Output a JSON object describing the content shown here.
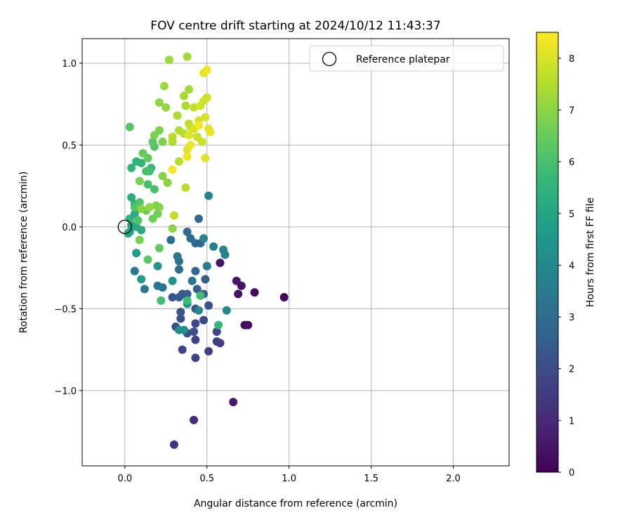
{
  "chart_data": {
    "type": "scatter",
    "title": "FOV centre drift starting at 2024/10/12 11:43:37",
    "xlabel": "Angular distance from reference (arcmin)",
    "ylabel": "Rotation from reference (arcmin)",
    "xlim": [
      -0.26,
      2.34
    ],
    "ylim": [
      -1.46,
      1.15
    ],
    "xticks": [
      0.0,
      0.5,
      1.0,
      1.5,
      2.0
    ],
    "xtick_labels": [
      "0.0",
      "0.5",
      "1.0",
      "1.5",
      "2.0"
    ],
    "yticks": [
      -1.0,
      -0.5,
      0.0,
      0.5,
      1.0
    ],
    "ytick_labels": [
      "−1.0",
      "−0.5",
      "0.0",
      "0.5",
      "1.0"
    ],
    "grid": true,
    "legend": {
      "placement": "top-right",
      "entries": [
        "Reference platepar"
      ]
    },
    "reference_point": {
      "x": 0.0,
      "y": 0.0
    },
    "colorbar": {
      "label": "Hours from first FF file",
      "colormap": "viridis",
      "range": [
        0,
        8.5
      ],
      "ticks": [
        0,
        1,
        2,
        3,
        4,
        5,
        6,
        7,
        8
      ],
      "tick_labels": [
        "0",
        "1",
        "2",
        "3",
        "4",
        "5",
        "6",
        "7",
        "8"
      ]
    },
    "points": [
      {
        "x": 0.97,
        "y": -0.43,
        "c": 0.1
      },
      {
        "x": 0.79,
        "y": -0.4,
        "c": 0.2
      },
      {
        "x": 0.73,
        "y": -0.6,
        "c": 0.3
      },
      {
        "x": 0.75,
        "y": -0.6,
        "c": 0.35
      },
      {
        "x": 0.71,
        "y": -0.36,
        "c": 0.4
      },
      {
        "x": 0.69,
        "y": -0.41,
        "c": 0.4
      },
      {
        "x": 0.68,
        "y": -0.33,
        "c": 0.5
      },
      {
        "x": 0.58,
        "y": -0.22,
        "c": 0.5
      },
      {
        "x": 0.66,
        "y": -1.07,
        "c": 0.6
      },
      {
        "x": 0.42,
        "y": -1.18,
        "c": 1.0
      },
      {
        "x": 0.3,
        "y": -1.33,
        "c": 1.2
      },
      {
        "x": 0.58,
        "y": -0.71,
        "c": 1.5
      },
      {
        "x": 0.51,
        "y": -0.76,
        "c": 1.6
      },
      {
        "x": 0.56,
        "y": -0.7,
        "c": 1.6
      },
      {
        "x": 0.43,
        "y": -0.8,
        "c": 1.7
      },
      {
        "x": 0.43,
        "y": -0.69,
        "c": 1.7
      },
      {
        "x": 0.35,
        "y": -0.75,
        "c": 1.8
      },
      {
        "x": 0.56,
        "y": -0.64,
        "c": 1.8
      },
      {
        "x": 0.48,
        "y": -0.57,
        "c": 1.9
      },
      {
        "x": 0.43,
        "y": -0.59,
        "c": 1.9
      },
      {
        "x": 0.34,
        "y": -0.56,
        "c": 2.0
      },
      {
        "x": 0.31,
        "y": -0.61,
        "c": 2.0
      },
      {
        "x": 0.42,
        "y": -0.64,
        "c": 2.1
      },
      {
        "x": 0.38,
        "y": -0.65,
        "c": 2.1
      },
      {
        "x": 0.51,
        "y": -0.48,
        "c": 2.2
      },
      {
        "x": 0.43,
        "y": -0.5,
        "c": 2.2
      },
      {
        "x": 0.34,
        "y": -0.52,
        "c": 2.3
      },
      {
        "x": 0.29,
        "y": -0.43,
        "c": 2.3
      },
      {
        "x": 0.33,
        "y": -0.43,
        "c": 2.4
      },
      {
        "x": 0.35,
        "y": -0.41,
        "c": 2.4
      },
      {
        "x": 0.38,
        "y": -0.41,
        "c": 2.5
      },
      {
        "x": 0.44,
        "y": -0.38,
        "c": 2.5
      },
      {
        "x": 0.48,
        "y": -0.41,
        "c": 2.6
      },
      {
        "x": 0.49,
        "y": -0.32,
        "c": 2.6
      },
      {
        "x": 0.43,
        "y": -0.27,
        "c": 2.7
      },
      {
        "x": 0.5,
        "y": -0.24,
        "c": 2.7
      },
      {
        "x": 0.46,
        "y": -0.1,
        "c": 2.8
      },
      {
        "x": 0.43,
        "y": -0.1,
        "c": 2.8
      },
      {
        "x": 0.45,
        "y": 0.05,
        "c": 2.9
      },
      {
        "x": 0.38,
        "y": -0.03,
        "c": 2.9
      },
      {
        "x": 0.4,
        "y": -0.07,
        "c": 3.0
      },
      {
        "x": 0.28,
        "y": -0.08,
        "c": 3.0
      },
      {
        "x": 0.33,
        "y": -0.26,
        "c": 3.1
      },
      {
        "x": 0.33,
        "y": -0.21,
        "c": 3.2
      },
      {
        "x": 0.32,
        "y": -0.18,
        "c": 3.3
      },
      {
        "x": 0.41,
        "y": -0.33,
        "c": 3.3
      },
      {
        "x": 0.23,
        "y": -0.37,
        "c": 3.4
      },
      {
        "x": 0.2,
        "y": -0.36,
        "c": 3.4
      },
      {
        "x": 0.12,
        "y": -0.38,
        "c": 3.5
      },
      {
        "x": 0.06,
        "y": -0.27,
        "c": 3.5
      },
      {
        "x": 0.5,
        "y": -0.24,
        "c": 3.6
      },
      {
        "x": 0.48,
        "y": -0.07,
        "c": 3.7
      },
      {
        "x": 0.54,
        "y": -0.12,
        "c": 3.8
      },
      {
        "x": 0.6,
        "y": -0.14,
        "c": 3.8
      },
      {
        "x": 0.61,
        "y": -0.17,
        "c": 3.9
      },
      {
        "x": 0.51,
        "y": 0.19,
        "c": 3.9
      },
      {
        "x": 0.62,
        "y": -0.51,
        "c": 4.0
      },
      {
        "x": 0.45,
        "y": -0.51,
        "c": 4.0
      },
      {
        "x": 0.33,
        "y": -0.63,
        "c": 4.1
      },
      {
        "x": 0.36,
        "y": -0.63,
        "c": 4.2
      },
      {
        "x": 0.38,
        "y": -0.47,
        "c": 4.3
      },
      {
        "x": 0.29,
        "y": -0.33,
        "c": 4.4
      },
      {
        "x": 0.2,
        "y": -0.24,
        "c": 4.5
      },
      {
        "x": 0.1,
        "y": -0.32,
        "c": 4.6
      },
      {
        "x": 0.07,
        "y": -0.16,
        "c": 4.7
      },
      {
        "x": 0.03,
        "y": -0.03,
        "c": 4.8
      },
      {
        "x": 0.04,
        "y": 0.01,
        "c": 4.9
      },
      {
        "x": 0.02,
        "y": -0.04,
        "c": 5.0
      },
      {
        "x": 0.07,
        "y": 0.0,
        "c": 5.1
      },
      {
        "x": 0.1,
        "y": -0.02,
        "c": 5.2
      },
      {
        "x": 0.06,
        "y": 0.08,
        "c": 5.2
      },
      {
        "x": 0.04,
        "y": 0.18,
        "c": 5.3
      },
      {
        "x": 0.06,
        "y": 0.14,
        "c": 5.4
      },
      {
        "x": 0.03,
        "y": 0.05,
        "c": 5.5
      },
      {
        "x": 0.07,
        "y": 0.4,
        "c": 5.5
      },
      {
        "x": 0.04,
        "y": 0.36,
        "c": 5.6
      },
      {
        "x": 0.1,
        "y": 0.39,
        "c": 5.6
      },
      {
        "x": 0.16,
        "y": 0.36,
        "c": 5.7
      },
      {
        "x": 0.57,
        "y": -0.6,
        "c": 5.7
      },
      {
        "x": 0.46,
        "y": -0.42,
        "c": 5.8
      },
      {
        "x": 0.38,
        "y": -0.45,
        "c": 5.8
      },
      {
        "x": 0.22,
        "y": -0.45,
        "c": 5.9
      },
      {
        "x": 0.15,
        "y": 0.34,
        "c": 5.9
      },
      {
        "x": 0.13,
        "y": 0.34,
        "c": 6.0
      },
      {
        "x": 0.18,
        "y": 0.23,
        "c": 6.0
      },
      {
        "x": 0.14,
        "y": 0.26,
        "c": 6.0
      },
      {
        "x": 0.09,
        "y": 0.15,
        "c": 6.1
      },
      {
        "x": 0.06,
        "y": 0.12,
        "c": 6.1
      },
      {
        "x": 0.08,
        "y": 0.04,
        "c": 6.1
      },
      {
        "x": 0.03,
        "y": 0.61,
        "c": 6.2
      },
      {
        "x": 0.18,
        "y": 0.49,
        "c": 6.2
      },
      {
        "x": 0.17,
        "y": 0.52,
        "c": 6.3
      },
      {
        "x": 0.14,
        "y": -0.2,
        "c": 6.3
      },
      {
        "x": 0.21,
        "y": -0.13,
        "c": 6.4
      },
      {
        "x": 0.14,
        "y": 0.42,
        "c": 6.4
      },
      {
        "x": 0.11,
        "y": 0.45,
        "c": 6.5
      },
      {
        "x": 0.13,
        "y": 0.1,
        "c": 6.5
      },
      {
        "x": 0.2,
        "y": 0.08,
        "c": 6.6
      },
      {
        "x": 0.17,
        "y": 0.05,
        "c": 6.6
      },
      {
        "x": 0.09,
        "y": -0.08,
        "c": 6.7
      },
      {
        "x": 0.09,
        "y": 0.28,
        "c": 6.7
      },
      {
        "x": 0.18,
        "y": 0.56,
        "c": 6.8
      },
      {
        "x": 0.21,
        "y": 0.59,
        "c": 6.8
      },
      {
        "x": 0.23,
        "y": 0.52,
        "c": 6.8
      },
      {
        "x": 0.23,
        "y": 0.31,
        "c": 6.9
      },
      {
        "x": 0.19,
        "y": 0.13,
        "c": 6.9
      },
      {
        "x": 0.21,
        "y": 0.12,
        "c": 6.9
      },
      {
        "x": 0.26,
        "y": 0.27,
        "c": 7.0
      },
      {
        "x": 0.29,
        "y": -0.01,
        "c": 7.0
      },
      {
        "x": 0.1,
        "y": 0.11,
        "c": 7.0
      },
      {
        "x": 0.15,
        "y": 0.12,
        "c": 7.1
      },
      {
        "x": 0.21,
        "y": 0.76,
        "c": 7.1
      },
      {
        "x": 0.25,
        "y": 0.73,
        "c": 7.1
      },
      {
        "x": 0.24,
        "y": 0.86,
        "c": 7.2
      },
      {
        "x": 0.27,
        "y": 1.02,
        "c": 7.2
      },
      {
        "x": 0.38,
        "y": 1.04,
        "c": 7.3
      },
      {
        "x": 0.39,
        "y": 0.84,
        "c": 7.3
      },
      {
        "x": 0.36,
        "y": 0.8,
        "c": 7.4
      },
      {
        "x": 0.37,
        "y": 0.74,
        "c": 7.4
      },
      {
        "x": 0.32,
        "y": 0.68,
        "c": 7.4
      },
      {
        "x": 0.36,
        "y": 0.57,
        "c": 7.5
      },
      {
        "x": 0.33,
        "y": 0.59,
        "c": 7.5
      },
      {
        "x": 0.29,
        "y": 0.52,
        "c": 7.5
      },
      {
        "x": 0.29,
        "y": 0.55,
        "c": 7.6
      },
      {
        "x": 0.33,
        "y": 0.4,
        "c": 7.6
      },
      {
        "x": 0.37,
        "y": 0.24,
        "c": 7.6
      },
      {
        "x": 0.3,
        "y": 0.07,
        "c": 7.7
      },
      {
        "x": 0.42,
        "y": 0.73,
        "c": 7.7
      },
      {
        "x": 0.39,
        "y": 0.63,
        "c": 7.7
      },
      {
        "x": 0.47,
        "y": 0.52,
        "c": 7.8
      },
      {
        "x": 0.44,
        "y": 0.55,
        "c": 7.8
      },
      {
        "x": 0.4,
        "y": 0.61,
        "c": 7.8
      },
      {
        "x": 0.48,
        "y": 0.77,
        "c": 7.9
      },
      {
        "x": 0.46,
        "y": 0.74,
        "c": 7.9
      },
      {
        "x": 0.5,
        "y": 0.79,
        "c": 7.9
      },
      {
        "x": 0.49,
        "y": 0.67,
        "c": 8.0
      },
      {
        "x": 0.45,
        "y": 0.65,
        "c": 8.0
      },
      {
        "x": 0.42,
        "y": 0.6,
        "c": 8.0
      },
      {
        "x": 0.39,
        "y": 0.56,
        "c": 8.1
      },
      {
        "x": 0.38,
        "y": 0.47,
        "c": 8.1
      },
      {
        "x": 0.49,
        "y": 0.42,
        "c": 8.1
      },
      {
        "x": 0.51,
        "y": 0.6,
        "c": 8.2
      },
      {
        "x": 0.52,
        "y": 0.58,
        "c": 8.2
      },
      {
        "x": 0.48,
        "y": 0.94,
        "c": 8.2
      },
      {
        "x": 0.5,
        "y": 0.96,
        "c": 8.3
      },
      {
        "x": 0.4,
        "y": 0.5,
        "c": 8.3
      },
      {
        "x": 0.38,
        "y": 0.43,
        "c": 8.3
      },
      {
        "x": 0.29,
        "y": 0.35,
        "c": 8.4
      },
      {
        "x": 0.45,
        "y": 0.62,
        "c": 8.4
      }
    ]
  }
}
